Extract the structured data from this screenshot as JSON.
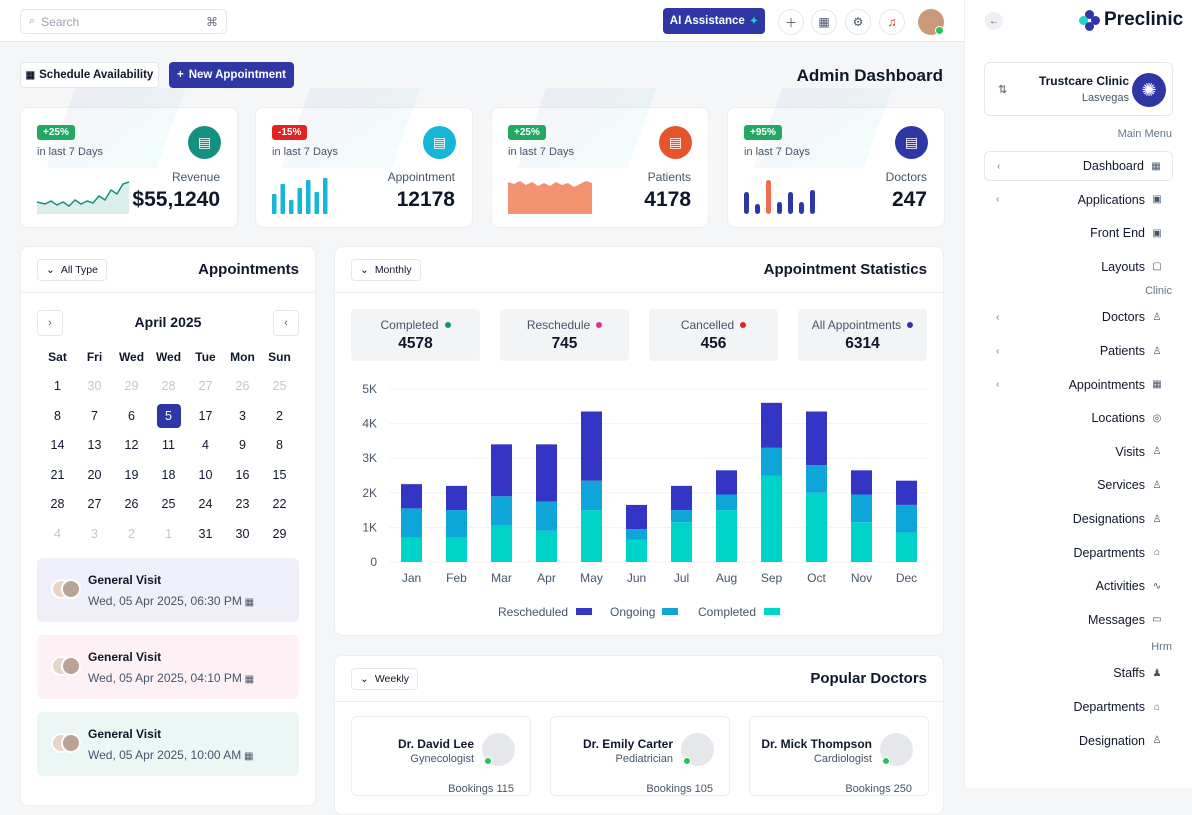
{
  "topbar": {
    "search_placeholder": "Search",
    "search_shortcut": "⌘",
    "ai_label": "AI Assistance"
  },
  "brand": {
    "name": "Preclinic"
  },
  "clinic": {
    "name": "Trustcare Clinic",
    "location": "Lasvegas"
  },
  "menu": {
    "main_heading": "Main Menu",
    "main": [
      {
        "label": "Dashboard",
        "icon": "grid-icon",
        "active": true,
        "chevron": true
      },
      {
        "label": "Applications",
        "icon": "apps-icon",
        "chevron": true
      },
      {
        "label": "Front End",
        "icon": "apps-icon",
        "chevron": false
      },
      {
        "label": "Layouts",
        "icon": "layout-icon",
        "chevron": false
      }
    ],
    "clinic_heading": "Clinic",
    "clinic": [
      {
        "label": "Doctors",
        "icon": "user-icon",
        "chevron": true
      },
      {
        "label": "Patients",
        "icon": "user-icon",
        "chevron": true
      },
      {
        "label": "Appointments",
        "icon": "calendar-icon",
        "chevron": true
      },
      {
        "label": "Locations",
        "icon": "location-icon",
        "chevron": false
      },
      {
        "label": "Visits",
        "icon": "user-icon",
        "chevron": false
      },
      {
        "label": "Services",
        "icon": "user-icon",
        "chevron": false
      },
      {
        "label": "Designations",
        "icon": "user-icon",
        "chevron": false
      },
      {
        "label": "Departments",
        "icon": "building-icon",
        "chevron": false
      },
      {
        "label": "Activities",
        "icon": "activity-icon",
        "chevron": false
      },
      {
        "label": "Messages",
        "icon": "message-icon",
        "chevron": false
      }
    ],
    "hrm_heading": "Hrm",
    "hrm": [
      {
        "label": "Staffs",
        "icon": "users-icon",
        "chevron": false
      },
      {
        "label": "Departments",
        "icon": "building-icon",
        "chevron": false
      },
      {
        "label": "Designation",
        "icon": "user-icon",
        "chevron": false
      }
    ]
  },
  "actions": {
    "schedule": "Schedule Availability",
    "new_appointment": "New Appointment"
  },
  "page_title": "Admin Dashboard",
  "stats": [
    {
      "badge": "+25%",
      "badge_color": "#22a861",
      "period": "in last 7 Days",
      "label": "Revenue",
      "value": "$55,1240",
      "icon_color": "#15907e",
      "spark": "line"
    },
    {
      "badge": "-15%",
      "badge_color": "#e02424",
      "period": "in last 7 Days",
      "label": "Appointment",
      "value": "12178",
      "icon_color": "#18b6d6",
      "spark": "bars"
    },
    {
      "badge": "+25%",
      "badge_color": "#22a861",
      "period": "in last 7 Days",
      "label": "Patients",
      "value": "4178",
      "icon_color": "#e5542a",
      "spark": "area"
    },
    {
      "badge": "+95%",
      "badge_color": "#22a861",
      "period": "in last 7 Days",
      "label": "Doctors",
      "value": "247",
      "icon_color": "#2e37a4",
      "spark": "dots"
    }
  ],
  "appointments": {
    "title": "Appointments",
    "filter": "All Type",
    "month": "April 2025",
    "weekdays": [
      "Sat",
      "Fri",
      "Wed",
      "Wed",
      "Tue",
      "Mon",
      "Sun"
    ],
    "weeks": [
      [
        "1",
        "30",
        "29",
        "28",
        "27",
        "26",
        "25"
      ],
      [
        "8",
        "7",
        "6",
        "5",
        "17",
        "3",
        "2"
      ],
      [
        "14",
        "13",
        "12",
        "11",
        "4",
        "9",
        "8"
      ],
      [
        "21",
        "20",
        "19",
        "18",
        "10",
        "16",
        "15"
      ],
      [
        "28",
        "27",
        "26",
        "25",
        "24",
        "23",
        "22"
      ],
      [
        "4",
        "3",
        "2",
        "1",
        "31",
        "30",
        "29"
      ]
    ],
    "muted": [
      [
        0,
        1
      ],
      [
        0,
        2
      ],
      [
        0,
        3
      ],
      [
        0,
        4
      ],
      [
        0,
        5
      ],
      [
        0,
        6
      ],
      [
        5,
        0
      ],
      [
        5,
        1
      ],
      [
        5,
        2
      ],
      [
        5,
        3
      ]
    ],
    "selected": [
      1,
      3
    ],
    "visits": [
      {
        "title": "General Visit",
        "time": "Wed, 05 Apr 2025, 06:30 PM",
        "bg": "#eeeff8"
      },
      {
        "title": "General Visit",
        "time": "Wed, 05 Apr 2025, 04:10 PM",
        "bg": "#fdf1f6"
      },
      {
        "title": "General Visit",
        "time": "Wed, 05 Apr 2025, 10:00 AM",
        "bg": "#ecf6f4"
      }
    ]
  },
  "statistics": {
    "title": "Appointment Statistics",
    "filter": "Monthly",
    "boxes": [
      {
        "label": "Completed",
        "value": "4578",
        "color": "#15907e"
      },
      {
        "label": "Reschedule",
        "value": "745",
        "color": "#e0338e"
      },
      {
        "label": "Cancelled",
        "value": "456",
        "color": "#e02424"
      },
      {
        "label": "All Appointments",
        "value": "6314",
        "color": "#2e37a4"
      }
    ]
  },
  "chart_data": {
    "type": "bar",
    "stacked": true,
    "categories": [
      "Jan",
      "Feb",
      "Mar",
      "Apr",
      "May",
      "Jun",
      "Jul",
      "Aug",
      "Sep",
      "Oct",
      "Nov",
      "Dec"
    ],
    "series": [
      {
        "name": "Completed",
        "color": "#00d3c7",
        "values": [
          700,
          700,
          1050,
          900,
          1500,
          650,
          1150,
          1500,
          2500,
          2000,
          1150,
          850
        ]
      },
      {
        "name": "Ongoing",
        "color": "#0ea5d9",
        "values": [
          850,
          800,
          850,
          850,
          850,
          300,
          350,
          450,
          800,
          800,
          800,
          800
        ]
      },
      {
        "name": "Rescheduled",
        "color": "#3435c4",
        "values": [
          700,
          700,
          1500,
          1650,
          2000,
          700,
          700,
          700,
          1300,
          1550,
          700,
          700
        ]
      }
    ],
    "legend_order": [
      "Rescheduled",
      "Ongoing",
      "Completed"
    ],
    "y_ticks": [
      "0",
      "1K",
      "2K",
      "3K",
      "4K",
      "5K"
    ],
    "ylim": [
      0,
      5000
    ],
    "legend_position": "bottom",
    "grid": true
  },
  "doctors": {
    "title": "Popular Doctors",
    "filter": "Weekly",
    "items": [
      {
        "name": "Dr. David Lee",
        "specialty": "Gynecologist",
        "bookings": "Bookings 115"
      },
      {
        "name": "Dr. Emily Carter",
        "specialty": "Pediatrician",
        "bookings": "Bookings 105"
      },
      {
        "name": "Dr. Mick Thompson",
        "specialty": "Cardiologist",
        "bookings": "Bookings 250"
      }
    ]
  }
}
